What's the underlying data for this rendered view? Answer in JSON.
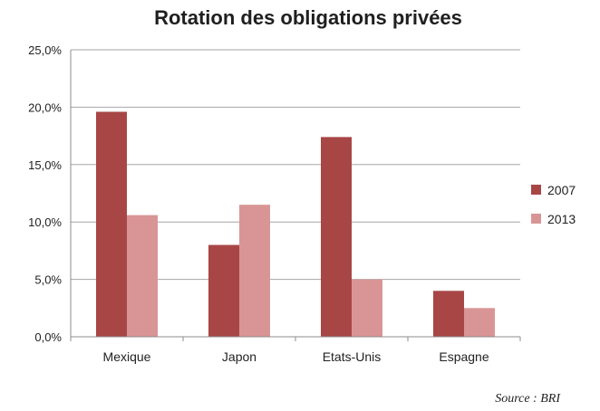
{
  "chart_data": {
    "type": "bar",
    "title": "Rotation des obligations privées",
    "categories": [
      "Mexique",
      "Japon",
      "Etats-Unis",
      "Espagne"
    ],
    "series": [
      {
        "name": "2007",
        "values": [
          19.6,
          8.0,
          17.4,
          4.0
        ]
      },
      {
        "name": "2013",
        "values": [
          10.6,
          11.5,
          5.0,
          2.5
        ]
      }
    ],
    "ylim": [
      0,
      25
    ],
    "yticks": [
      0,
      5,
      10,
      15,
      20,
      25
    ],
    "ytick_labels": [
      "0,0%",
      "5,0%",
      "10,0%",
      "15,0%",
      "20,0%",
      "25,0%"
    ],
    "grid": true,
    "legend_position": "right",
    "colors": {
      "2007": "#a84646",
      "2013": "#d99595"
    },
    "source_note": "Source : BRI"
  }
}
